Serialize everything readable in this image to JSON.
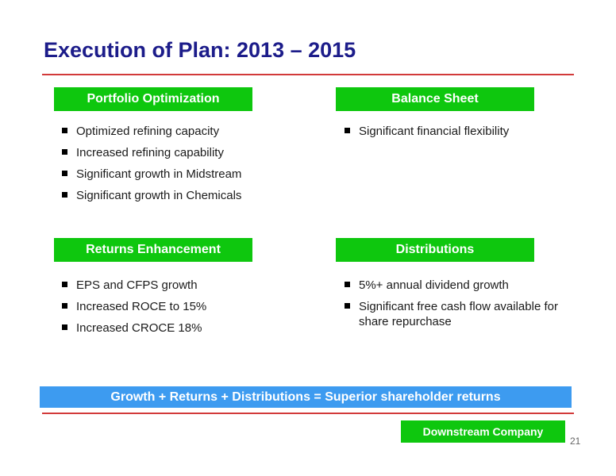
{
  "title": "Execution of Plan: 2013 – 2015",
  "sections": {
    "portfolio": {
      "header": "Portfolio Optimization",
      "bullets": [
        "Optimized refining capacity",
        "Increased refining capability",
        "Significant growth in Midstream",
        "Significant growth in Chemicals"
      ]
    },
    "balance_sheet": {
      "header": "Balance Sheet",
      "bullets": [
        "Significant financial flexibility"
      ]
    },
    "returns": {
      "header": "Returns Enhancement",
      "bullets": [
        "EPS and CFPS growth",
        "Increased ROCE to 15%",
        "Increased CROCE 18%"
      ]
    },
    "distributions": {
      "header": "Distributions",
      "bullets": [
        "5%+ annual dividend growth",
        "Significant free cash flow available for share repurchase"
      ]
    }
  },
  "banner": "Growth + Returns + Distributions = Superior shareholder returns",
  "footer_tag": "Downstream Company",
  "page_number": "21",
  "colors": {
    "title": "#1c1c8a",
    "section_header_bg": "#0ec70e",
    "banner_bg": "#3d9bf0",
    "rule": "#d23a3a"
  }
}
